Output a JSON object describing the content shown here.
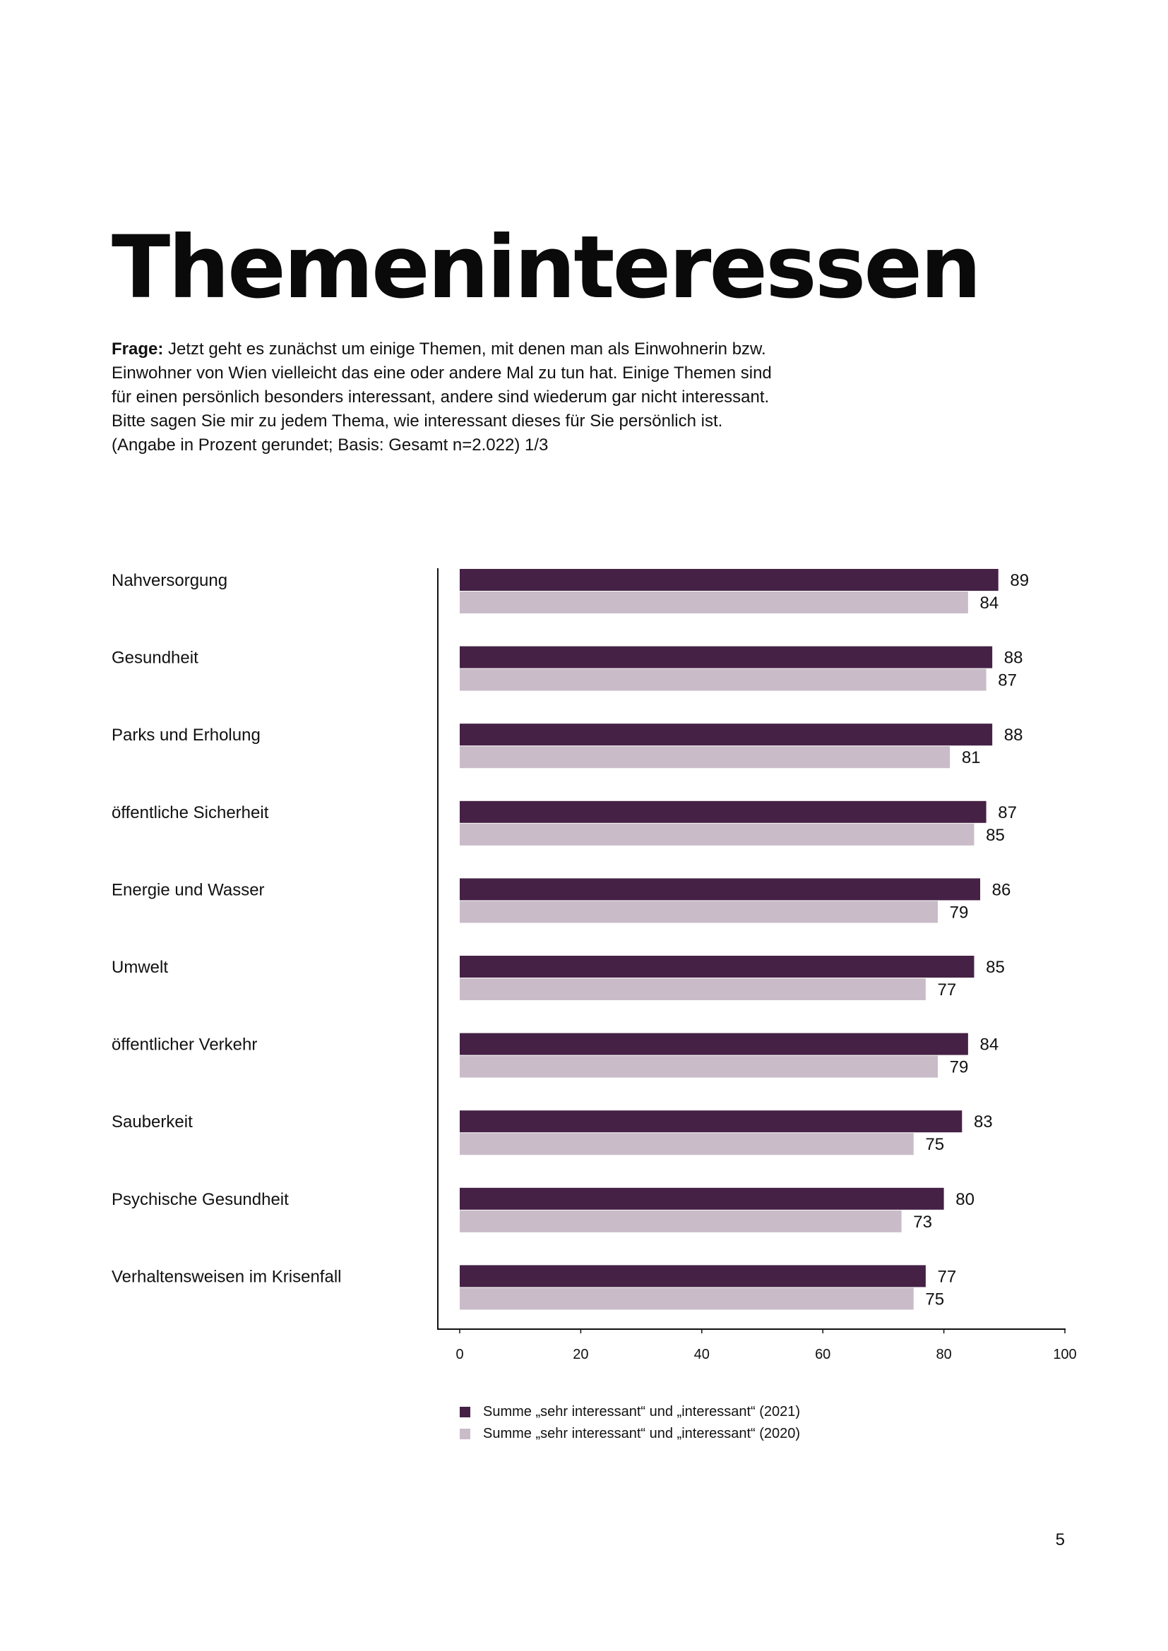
{
  "page": {
    "title": "Themeninteressen",
    "question_label": "Frage:",
    "question_lines": [
      "Jetzt geht es zunächst um einige Themen, mit denen man als Einwohnerin bzw.",
      "Einwohner von Wien vielleicht das eine oder andere Mal zu tun hat. Einige Themen sind",
      "für einen persönlich besonders interessant, andere sind wiederum gar nicht interessant.",
      "Bitte sagen Sie mir zu jedem Thema, wie interessant dieses für Sie persönlich ist.",
      "(Angabe in Prozent gerundet; Basis: Gesamt n=2.022) 1/3"
    ],
    "page_number": "5"
  },
  "chart_data": {
    "type": "bar",
    "orientation": "horizontal",
    "categories": [
      "Nahversorgung",
      "Gesundheit",
      "Parks und Erholung",
      "öffentliche Sicherheit",
      "Energie und Wasser",
      "Umwelt",
      "öffentlicher Verkehr",
      "Sauberkeit",
      "Psychische Gesundheit",
      "Verhaltensweisen im Krisenfall"
    ],
    "series": [
      {
        "name": "Summe „sehr interessant“ und „interessant“ (2021)",
        "color": "#452145",
        "values": [
          89,
          88,
          88,
          87,
          86,
          85,
          84,
          83,
          80,
          77
        ]
      },
      {
        "name": "Summe „sehr interessant“ und „interessant“ (2020)",
        "color": "#c9bcc8",
        "values": [
          84,
          87,
          81,
          85,
          79,
          77,
          79,
          75,
          73,
          75
        ]
      }
    ],
    "xlim": [
      0,
      100
    ],
    "xticks": [
      "0",
      "20",
      "40",
      "60",
      "80",
      "100"
    ],
    "legend_position": "bottom",
    "grid": false
  }
}
